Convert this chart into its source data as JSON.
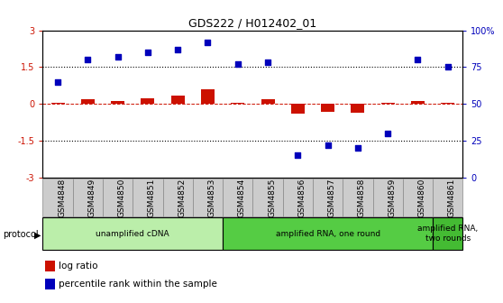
{
  "title": "GDS222 / H012402_01",
  "samples": [
    "GSM4848",
    "GSM4849",
    "GSM4850",
    "GSM4851",
    "GSM4852",
    "GSM4853",
    "GSM4854",
    "GSM4855",
    "GSM4856",
    "GSM4857",
    "GSM4858",
    "GSM4859",
    "GSM4860",
    "GSM4861"
  ],
  "log_ratio": [
    0.05,
    0.18,
    0.12,
    0.22,
    0.35,
    0.6,
    0.05,
    0.18,
    -0.42,
    -0.32,
    -0.38,
    0.04,
    0.1,
    0.04
  ],
  "percentile": [
    65,
    80,
    82,
    85,
    87,
    92,
    77,
    78,
    15,
    22,
    20,
    30,
    80,
    75
  ],
  "ylim_left": [
    -3,
    3
  ],
  "ylim_right": [
    0,
    100
  ],
  "bar_color": "#cc1100",
  "scatter_color": "#0000bb",
  "protocol_groups": [
    {
      "label": "unamplified cDNA",
      "start": 0,
      "end": 5,
      "color": "#bbeeaa"
    },
    {
      "label": "amplified RNA, one round",
      "start": 6,
      "end": 12,
      "color": "#55cc44"
    },
    {
      "label": "amplified RNA,\ntwo rounds",
      "start": 13,
      "end": 13,
      "color": "#44bb33"
    }
  ],
  "legend_items": [
    {
      "label": "log ratio",
      "color": "#cc1100"
    },
    {
      "label": "percentile rank within the sample",
      "color": "#0000bb"
    }
  ],
  "sample_box_color": "#cccccc",
  "sample_box_edge": "#888888",
  "bg_color": "#ffffff"
}
